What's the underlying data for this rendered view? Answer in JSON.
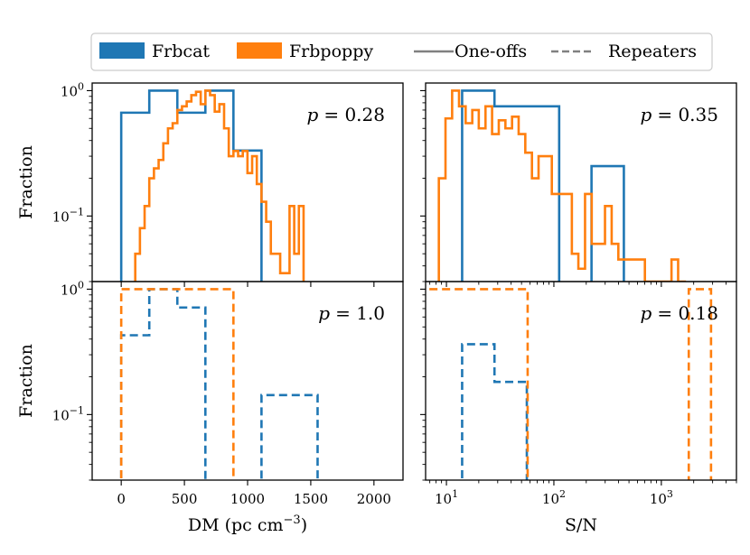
{
  "colors": {
    "frbcat": "#1f77b4",
    "frbpoppy": "#ff7f0e",
    "gray": "#808080"
  },
  "legend": {
    "entries": [
      {
        "label": "Frbcat",
        "kind": "patch",
        "color": "#1f77b4"
      },
      {
        "label": "Frbpoppy",
        "kind": "patch",
        "color": "#ff7f0e"
      },
      {
        "label": "One-offs",
        "kind": "solid-line",
        "color": "#808080"
      },
      {
        "label": "Repeaters",
        "kind": "dashed-line",
        "color": "#808080"
      }
    ]
  },
  "chart_data": [
    {
      "id": "dm-oneoffs",
      "type": "histogram-step",
      "row": "top",
      "col": "left",
      "ylabel": "Fraction",
      "xlabel": "",
      "xscale": "linear",
      "yscale": "log",
      "xlim": [
        -230,
        2230
      ],
      "ylim": [
        0.03,
        1.15
      ],
      "yticks": [
        {
          "value": 1,
          "label": "10^0"
        },
        {
          "value": 0.1,
          "label": "10^-1"
        }
      ],
      "annotation": {
        "symbol": "p",
        "text": "= 0.28",
        "value": 0.28
      },
      "series": [
        {
          "name": "Frbcat",
          "style": "solid",
          "color": "#1f77b4",
          "edges": [
            0,
            222,
            444,
            666,
            888,
            1110
          ],
          "values": [
            0.667,
            1.0,
            0.667,
            1.0,
            0.333
          ]
        },
        {
          "name": "Frbpoppy",
          "style": "solid",
          "color": "#ff7f0e",
          "edges": [
            111,
            148,
            185,
            222,
            259,
            296,
            333,
            370,
            407,
            444,
            481,
            518,
            555,
            592,
            629,
            666,
            703,
            740,
            777,
            814,
            851,
            888,
            925,
            962,
            999,
            1036,
            1073,
            1110,
            1147,
            1184,
            1221,
            1258,
            1295,
            1332,
            1369,
            1406,
            1443
          ],
          "values": [
            0.05,
            0.08,
            0.12,
            0.2,
            0.24,
            0.28,
            0.38,
            0.5,
            0.55,
            0.7,
            0.75,
            0.82,
            0.92,
            0.98,
            0.78,
            1.0,
            0.92,
            0.68,
            0.78,
            0.5,
            0.3,
            0.33,
            0.3,
            0.33,
            0.22,
            0.3,
            0.18,
            0.13,
            0.09,
            0.05,
            0.05,
            0.035,
            0.035,
            0.12,
            0.05,
            0.12
          ]
        }
      ]
    },
    {
      "id": "sn-oneoffs",
      "type": "histogram-step",
      "row": "top",
      "col": "right",
      "ylabel": "",
      "xlabel": "",
      "xscale": "log",
      "yscale": "log",
      "xlim": [
        6.4,
        5000
      ],
      "ylim": [
        0.03,
        1.15
      ],
      "yticks": [
        {
          "value": 1,
          "label": ""
        },
        {
          "value": 0.1,
          "label": ""
        }
      ],
      "annotation": {
        "symbol": "p",
        "text": "= 0.35",
        "value": 0.35
      },
      "series": [
        {
          "name": "Frbcat",
          "style": "solid",
          "color": "#1f77b4",
          "edges": [
            14,
            28,
            56,
            112,
            224,
            448
          ],
          "values": [
            1.0,
            0.75,
            0.75,
            0.0,
            0.25
          ]
        },
        {
          "name": "Frbpoppy",
          "style": "solid",
          "color": "#ff7f0e",
          "edges": [
            8.5,
            9.8,
            11.3,
            13.1,
            15.1,
            17.4,
            20,
            23.1,
            26.6,
            30.7,
            35.4,
            40.8,
            47,
            54.2,
            62.5,
            72,
            83,
            95.7,
            110,
            127,
            147,
            169,
            195,
            225,
            259,
            299,
            345,
            398,
            459,
            529,
            610,
            703,
            811,
            935,
            1078,
            1243,
            1433,
            1653
          ],
          "values": [
            0.2,
            0.6,
            1.0,
            0.75,
            0.55,
            0.7,
            0.5,
            0.75,
            0.45,
            0.58,
            0.5,
            0.62,
            0.45,
            0.32,
            0.2,
            0.3,
            0.3,
            0.15,
            0.15,
            0.15,
            0.05,
            0.038,
            0.15,
            0.06,
            0.06,
            0.12,
            0.06,
            0.045,
            0.045,
            0.045,
            0.045,
            0.03,
            0.03,
            0.03,
            0.03,
            0.045,
            0.03
          ]
        }
      ]
    },
    {
      "id": "dm-repeaters",
      "type": "histogram-step",
      "row": "bottom",
      "col": "left",
      "ylabel": "Fraction",
      "xlabel": "DM (pc cm^-3)",
      "xscale": "linear",
      "yscale": "log",
      "xlim": [
        -230,
        2230
      ],
      "ylim": [
        0.03,
        1.15
      ],
      "xticks": [
        0,
        500,
        1000,
        1500,
        2000
      ],
      "yticks": [
        {
          "value": 1,
          "label": "10^0"
        },
        {
          "value": 0.1,
          "label": "10^-1"
        }
      ],
      "annotation": {
        "symbol": "p",
        "text": "= 1.0",
        "value": 1.0
      },
      "series": [
        {
          "name": "Frbcat",
          "style": "dashed",
          "color": "#1f77b4",
          "edges": [
            0,
            222,
            444,
            666,
            888,
            1110,
            1332,
            1554
          ],
          "values": [
            0.429,
            1.0,
            0.714,
            0.0,
            0.0,
            0.143,
            0.143
          ]
        },
        {
          "name": "Frbpoppy",
          "style": "dashed",
          "color": "#ff7f0e",
          "edges": [
            0,
            888
          ],
          "values": [
            1.0
          ]
        }
      ]
    },
    {
      "id": "sn-repeaters",
      "type": "histogram-step",
      "row": "bottom",
      "col": "right",
      "ylabel": "",
      "xlabel": "S/N",
      "xscale": "log",
      "yscale": "log",
      "xlim": [
        6.4,
        5000
      ],
      "ylim": [
        0.03,
        1.15
      ],
      "xticks": [
        {
          "value": 10,
          "label": "10^1"
        },
        {
          "value": 100,
          "label": "10^2"
        },
        {
          "value": 1000,
          "label": "10^3"
        }
      ],
      "yticks": [
        {
          "value": 1,
          "label": ""
        },
        {
          "value": 0.1,
          "label": ""
        }
      ],
      "annotation": {
        "symbol": "p",
        "text": "= 0.18",
        "value": 0.18
      },
      "series": [
        {
          "name": "Frbcat",
          "style": "dashed",
          "color": "#1f77b4",
          "edges": [
            14,
            28,
            56
          ],
          "values": [
            0.364,
            0.182
          ]
        },
        {
          "name": "Frbpoppy",
          "style": "dashed",
          "color": "#ff7f0e",
          "edges": [
            4,
            57,
            1800,
            2900
          ],
          "values": [
            1.0,
            0.0,
            1.0
          ]
        }
      ]
    }
  ]
}
